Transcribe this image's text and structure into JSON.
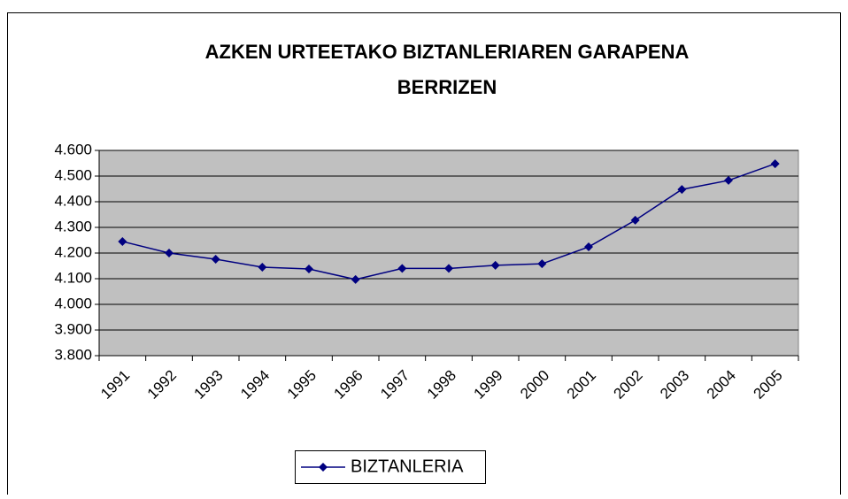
{
  "chart_data": {
    "type": "line",
    "title": [
      "AZKEN URTEETAKO BIZTANLERIAREN GARAPENA",
      "BERRIZEN"
    ],
    "categories": [
      "1991",
      "1992",
      "1993",
      "1994",
      "1995",
      "1996",
      "1997",
      "1998",
      "1999",
      "2000",
      "2001",
      "2002",
      "2003",
      "2004",
      "2005"
    ],
    "series": [
      {
        "name": "BIZTANLERIA",
        "color": "#000080",
        "values": [
          4245,
          4200,
          4176,
          4145,
          4138,
          4097,
          4140,
          4140,
          4152,
          4158,
          4224,
          4328,
          4448,
          4483,
          4548
        ]
      }
    ],
    "ylim": [
      3800,
      4600
    ],
    "yticks": [
      {
        "value": 3800,
        "label": "3.800"
      },
      {
        "value": 3900,
        "label": "3.900"
      },
      {
        "value": 4000,
        "label": "4.000"
      },
      {
        "value": 4100,
        "label": "4.100"
      },
      {
        "value": 4200,
        "label": "4.200"
      },
      {
        "value": 4300,
        "label": "4.300"
      },
      {
        "value": 4400,
        "label": "4.400"
      },
      {
        "value": 4500,
        "label": "4.500"
      },
      {
        "value": 4600,
        "label": "4.600"
      }
    ],
    "grid": true,
    "legend": "bottom",
    "plot_background": "#c0c0c0"
  }
}
